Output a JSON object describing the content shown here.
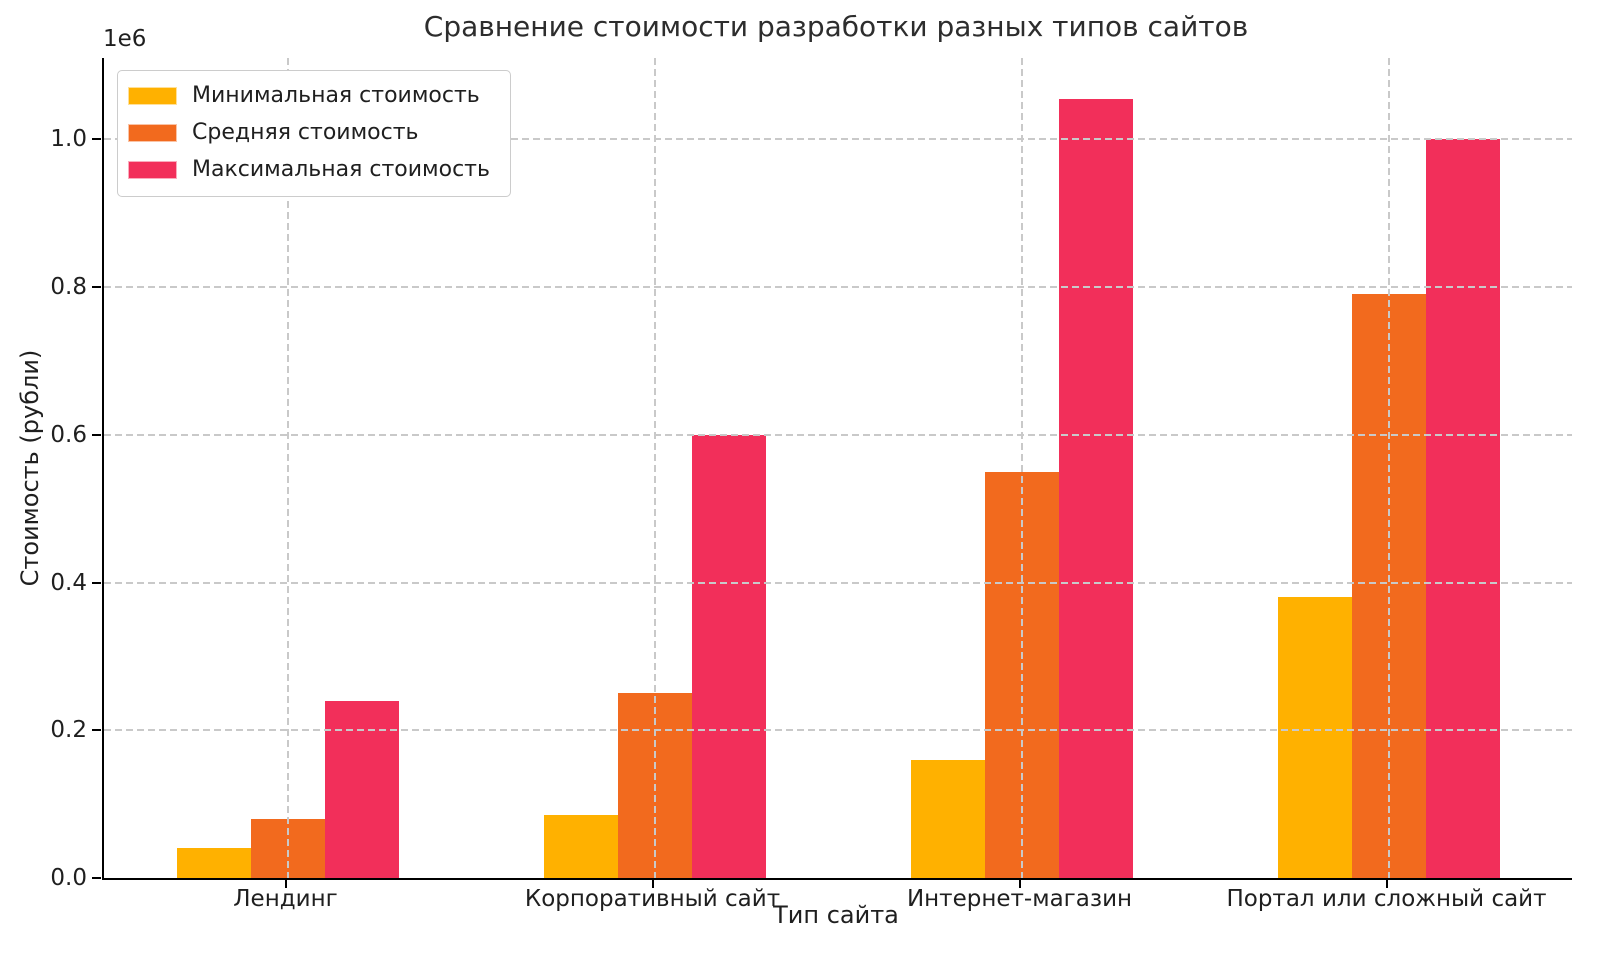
{
  "title": "Сравнение стоимости разработки разных типов сайтов",
  "axes": {
    "x_label": "Тип сайта",
    "y_label": "Стоимость (рубли)",
    "y_offset_label": "1e6",
    "y_ticks": [
      "0.0",
      "0.2",
      "0.4",
      "0.6",
      "0.8",
      "1.0"
    ]
  },
  "legend": {
    "position": "upper-left",
    "items": [
      "Минимальная стоимость",
      "Средняя стоимость",
      "Максимальная стоимость"
    ]
  },
  "colors": {
    "background": "#FFFFFF",
    "grid": "#C9C9C9",
    "spine": "#000000",
    "text": "#1F1F1F",
    "legend_border": "#CCCCCC"
  },
  "chart_data": {
    "type": "bar",
    "title": "Сравнение стоимости разработки разных типов сайтов",
    "xlabel": "Тип сайта",
    "ylabel": "Стоимость (рубли)",
    "y_offset": "1e6",
    "categories": [
      "Лендинг",
      "Корпоративный сайт",
      "Интернет-магазин",
      "Портал или сложный сайт"
    ],
    "series": [
      {
        "name": "Минимальная стоимость",
        "color": "#FFB100",
        "values": [
          40000,
          85000,
          160000,
          380000
        ]
      },
      {
        "name": "Средняя стоимость",
        "color": "#F26A1E",
        "values": [
          80000,
          250000,
          550000,
          790000
        ]
      },
      {
        "name": "Максимальная стоимость",
        "color": "#F22F5A",
        "values": [
          240000,
          600000,
          1055000,
          1000000
        ]
      }
    ],
    "ytick_values": [
      0,
      200000,
      400000,
      600000,
      800000,
      1000000
    ],
    "ylim": [
      0,
      1110000
    ],
    "grid": "dashed, both axes, drawn above bars",
    "legend_position": "upper left"
  }
}
